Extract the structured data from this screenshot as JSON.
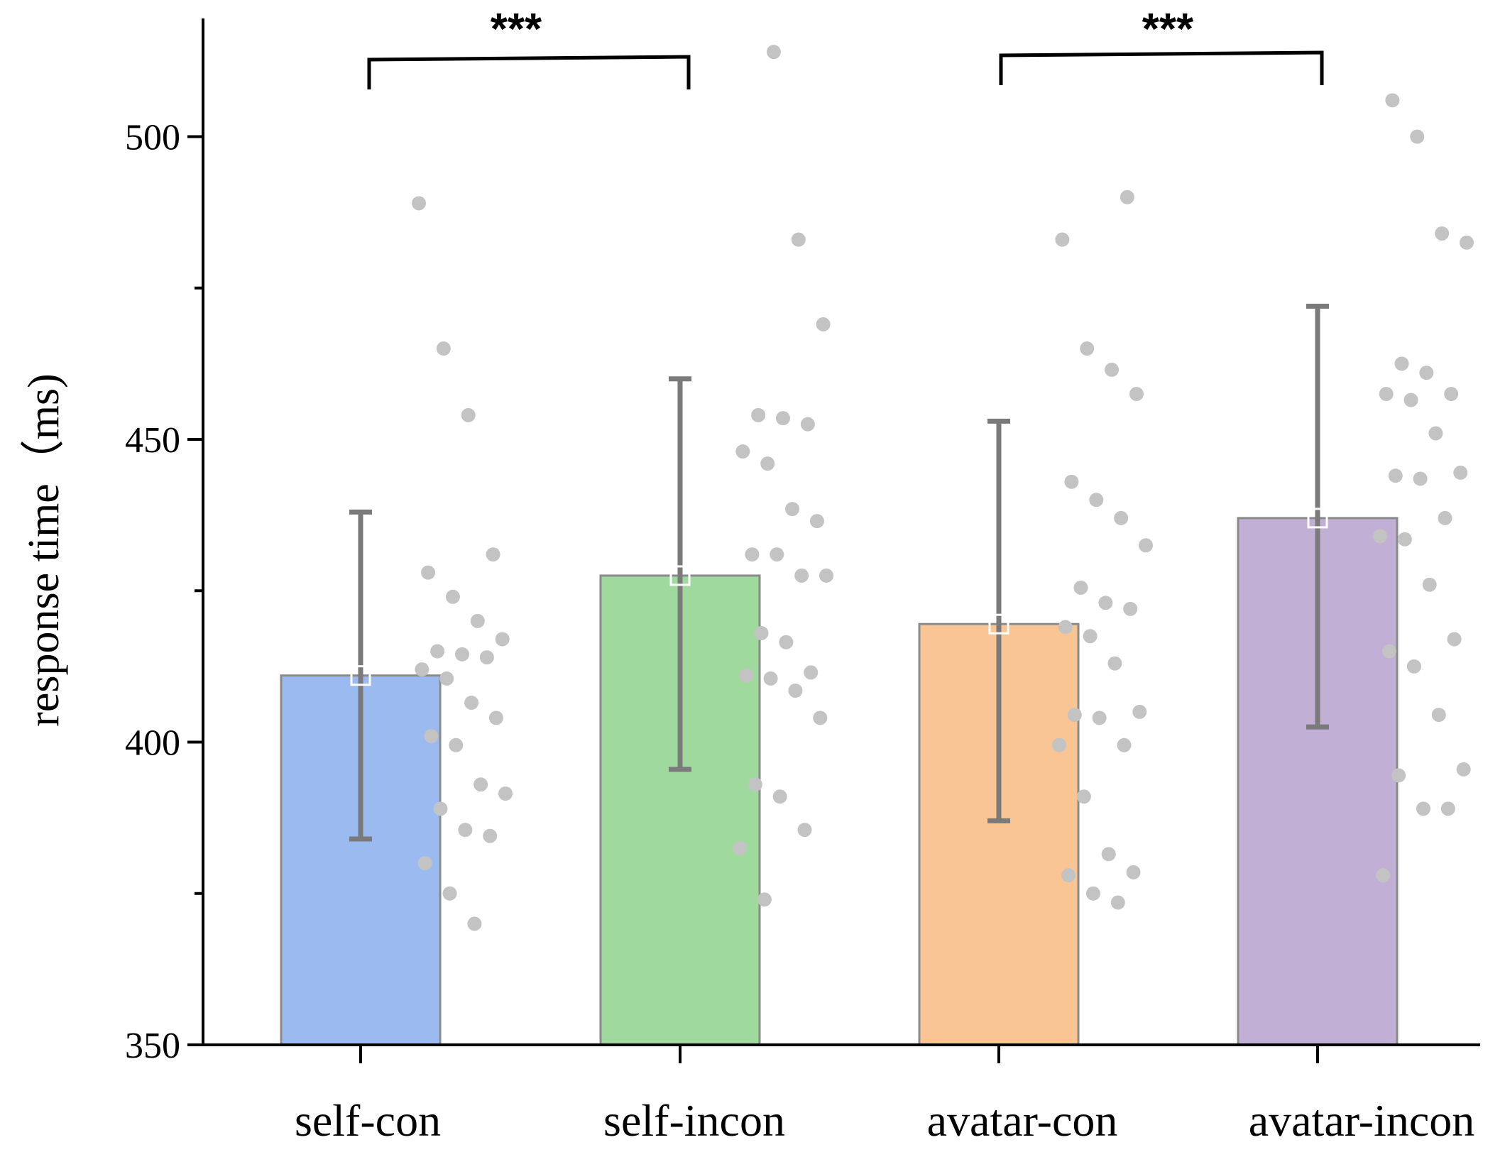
{
  "chart_data": {
    "type": "bar",
    "title": "",
    "xlabel": "",
    "ylabel": "response time（ms)",
    "ylim": [
      350,
      522
    ],
    "yticks": [
      350,
      400,
      450,
      500
    ],
    "minor_yticks": [
      375,
      425,
      475
    ],
    "grid": false,
    "categories": [
      "self-con",
      "self-incon",
      "avatar-con",
      "avatar-incon"
    ],
    "values": [
      411,
      427.5,
      419.5,
      437
    ],
    "error_low": [
      384,
      395.5,
      387,
      402.5
    ],
    "error_high": [
      438,
      460,
      453,
      472
    ],
    "colors": [
      "#9bbbf0",
      "#a0d99e",
      "#f9c595",
      "#c2afd6"
    ],
    "points": [
      [
        489,
        465,
        454,
        431,
        428,
        424,
        420,
        417,
        415,
        414.5,
        414,
        412,
        410.5,
        406.5,
        404,
        401,
        399.5,
        393,
        391.5,
        389,
        385.5,
        384.5,
        380,
        375,
        370
      ],
      [
        514,
        483,
        469,
        454,
        453.5,
        452.5,
        448,
        446,
        438.5,
        436.5,
        431,
        431,
        427.5,
        427.5,
        418,
        416.5,
        411.5,
        411,
        410.5,
        408.5,
        404,
        393,
        391,
        385.5,
        382.5,
        374
      ],
      [
        490,
        483,
        465,
        461.5,
        457.5,
        443,
        440,
        437,
        432.5,
        425.5,
        423,
        422,
        419,
        417.5,
        413,
        405,
        404.5,
        404,
        399.5,
        399.5,
        391,
        381.5,
        378.5,
        378,
        375,
        373.5
      ],
      [
        506,
        500,
        484,
        482.5,
        462.5,
        461,
        457.5,
        457.5,
        456.5,
        451,
        444.5,
        444,
        443.5,
        437,
        434,
        433.5,
        426,
        417,
        415,
        412.5,
        404.5,
        395.5,
        394.5,
        389,
        389,
        378
      ]
    ],
    "significance": [
      {
        "between": [
          "self-con",
          "self-incon"
        ],
        "label": "***"
      },
      {
        "between": [
          "avatar-con",
          "avatar-incon"
        ],
        "label": "***"
      }
    ]
  }
}
